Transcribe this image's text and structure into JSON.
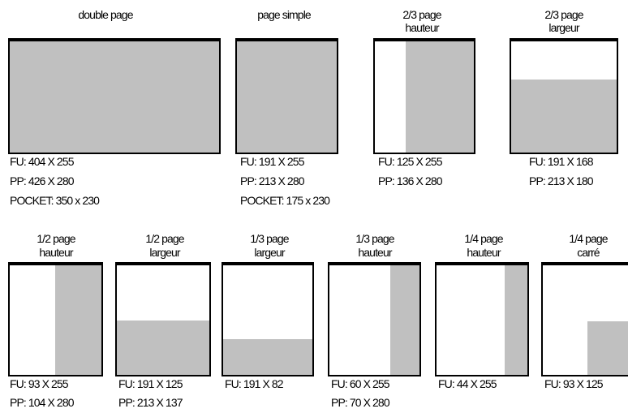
{
  "formats": [
    {
      "id": "double-page",
      "title": [
        "double page"
      ],
      "lines": [
        "FU:  404 X 255",
        "PP:  426 X 280",
        "POCKET:  350 x 230"
      ],
      "shaded": "full"
    },
    {
      "id": "page-simple",
      "title": [
        "page simple"
      ],
      "lines": [
        "FU:  191 X 255",
        "PP:  213 X 280",
        "POCKET:  175 x 230"
      ],
      "shaded": "full"
    },
    {
      "id": "two-thirds-hauteur",
      "title": [
        "2/3 page",
        "hauteur"
      ],
      "lines": [
        "FU:  125 X 255",
        "PP:  136 X 280"
      ],
      "shaded": "right column"
    },
    {
      "id": "two-thirds-largeur",
      "title": [
        "2/3 page",
        "largeur"
      ],
      "lines": [
        "FU:  191 X 168",
        "PP:  213 X 180"
      ],
      "shaded": "bottom band"
    },
    {
      "id": "half-hauteur",
      "title": [
        "1/2 page",
        "hauteur"
      ],
      "lines": [
        "FU:  93 X 255",
        "PP:  104 X 280"
      ],
      "shaded": "right column"
    },
    {
      "id": "half-largeur",
      "title": [
        "1/2 page",
        "largeur"
      ],
      "lines": [
        "FU:  191 X 125",
        "PP:  213 X 137"
      ],
      "shaded": "bottom band"
    },
    {
      "id": "third-largeur",
      "title": [
        "1/3 page",
        "largeur"
      ],
      "lines": [
        "FU:  191 X 82"
      ],
      "shaded": "bottom band"
    },
    {
      "id": "third-hauteur",
      "title": [
        "1/3 page",
        "hauteur"
      ],
      "lines": [
        "FU:  60 X 255",
        "PP:  70 X 280"
      ],
      "shaded": "right column"
    },
    {
      "id": "quarter-hauteur",
      "title": [
        "1/4 page",
        "hauteur"
      ],
      "lines": [
        "FU:  44 X 255"
      ],
      "shaded": "right column"
    },
    {
      "id": "quarter-carre",
      "title": [
        "1/4 page",
        "carré"
      ],
      "lines": [
        "FU:  93 X 125"
      ],
      "shaded": "bottom-right block"
    }
  ],
  "colors": {
    "shade": "#c0c0c0",
    "border": "#000000",
    "background": "#ffffff"
  }
}
